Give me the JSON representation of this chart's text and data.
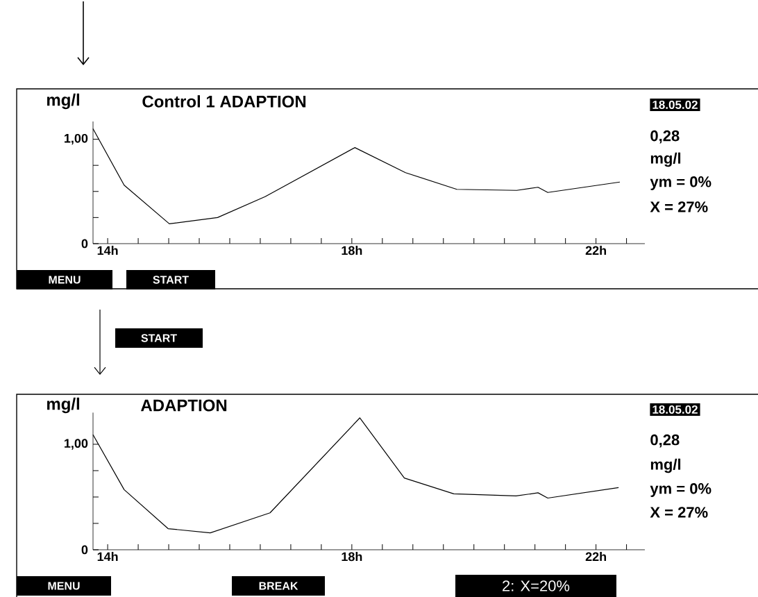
{
  "chart_data": [
    {
      "type": "line",
      "ylabel": "mg/l",
      "title": "Control 1   ADAPTION",
      "color": "#000000",
      "x": [
        13.76,
        14.27,
        15.01,
        15.8,
        16.58,
        18.05,
        18.88,
        19.72,
        20.7,
        21.05,
        21.21,
        22.39
      ],
      "values": [
        1.1,
        0.56,
        0.19,
        0.25,
        0.45,
        0.92,
        0.68,
        0.52,
        0.51,
        0.54,
        0.49,
        0.59
      ],
      "xlim": [
        13.76,
        22.8
      ],
      "ylim": [
        0,
        1.17
      ],
      "xticks": [
        {
          "value": 14,
          "label": "14h"
        },
        {
          "value": 14.5,
          "label": null
        },
        {
          "value": 15,
          "label": null
        },
        {
          "value": 15.5,
          "label": null
        },
        {
          "value": 16,
          "label": null
        },
        {
          "value": 16.5,
          "label": null
        },
        {
          "value": 17,
          "label": null
        },
        {
          "value": 17.5,
          "label": null
        },
        {
          "value": 18,
          "label": "18h"
        },
        {
          "value": 18.5,
          "label": null
        },
        {
          "value": 19,
          "label": null
        },
        {
          "value": 19.5,
          "label": null
        },
        {
          "value": 20,
          "label": null
        },
        {
          "value": 20.5,
          "label": null
        },
        {
          "value": 21,
          "label": null
        },
        {
          "value": 21.5,
          "label": null
        },
        {
          "value": 22,
          "label": "22h"
        },
        {
          "value": 22.5,
          "label": null
        }
      ],
      "yticks": [
        0,
        {
          "value": 0.25,
          "label": null
        },
        {
          "value": 0.5,
          "label": null
        },
        {
          "value": 0.75,
          "label": null
        },
        {
          "value": 1,
          "label": "1,00"
        }
      ],
      "annotations": [
        "18.05.02",
        "0,28",
        "mg/l",
        "ym = 0%",
        "X = 27%",
        "MENU",
        "START"
      ]
    },
    {
      "type": "line",
      "ylabel": "mg/l",
      "title": "ADAPTION",
      "color": "#000000",
      "x": [
        13.76,
        14.27,
        14.99,
        15.68,
        16.66,
        18.13,
        18.86,
        19.67,
        20.69,
        21.05,
        21.21,
        22.37
      ],
      "values": [
        1.09,
        0.57,
        0.2,
        0.16,
        0.35,
        1.25,
        0.68,
        0.53,
        0.51,
        0.54,
        0.49,
        0.59
      ],
      "xlim": [
        13.76,
        22.8
      ],
      "ylim": [
        0,
        1.3
      ],
      "xticks": [
        {
          "value": 14,
          "label": "14h"
        },
        {
          "value": 14.5,
          "label": null
        },
        {
          "value": 15,
          "label": null
        },
        {
          "value": 15.5,
          "label": null
        },
        {
          "value": 16,
          "label": null
        },
        {
          "value": 16.5,
          "label": null
        },
        {
          "value": 17,
          "label": null
        },
        {
          "value": 17.5,
          "label": null
        },
        {
          "value": 18,
          "label": "18h"
        },
        {
          "value": 18.5,
          "label": null
        },
        {
          "value": 19,
          "label": null
        },
        {
          "value": 19.5,
          "label": null
        },
        {
          "value": 20,
          "label": null
        },
        {
          "value": 20.5,
          "label": null
        },
        {
          "value": 21,
          "label": null
        },
        {
          "value": 21.5,
          "label": null
        },
        {
          "value": 22,
          "label": "22h"
        },
        {
          "value": 22.5,
          "label": null
        }
      ],
      "yticks": [
        0,
        {
          "value": 0.25,
          "label": null
        },
        {
          "value": 0.5,
          "label": null
        },
        {
          "value": 0.75,
          "label": null
        },
        {
          "value": 1,
          "label": "1,00"
        }
      ],
      "annotations": [
        "START",
        "18.05.02",
        "0,28",
        "mg/l",
        "ym = 0%",
        "X = 27%",
        "MENU",
        "BREAK",
        "2: X=20%"
      ]
    }
  ]
}
